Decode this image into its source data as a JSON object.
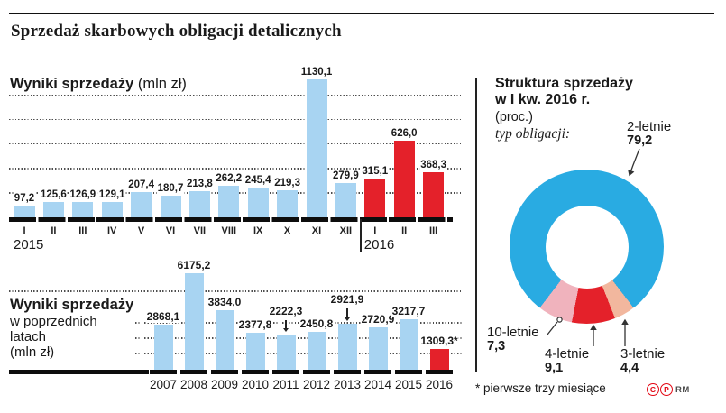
{
  "header": {
    "title": "Sprzedaż skarbowych obligacji detalicznych"
  },
  "colors": {
    "bar_blue": "#a8d4f2",
    "bar_red": "#e4212a",
    "grid": "#4d4d4d",
    "text": "#1a1a1a",
    "credit_red": "#e30613"
  },
  "chart_data": [
    {
      "id": "monthly-sales",
      "type": "bar",
      "title": "Wyniki sprzedaży",
      "unit": "(mln zł)",
      "ylim": [
        0,
        1200
      ],
      "gridlines": [
        200,
        400,
        600,
        800,
        1000
      ],
      "legend_position": "none",
      "points": [
        {
          "cat": "I",
          "year": "2015",
          "value": 97.2,
          "label": "97,2",
          "color": "bar_blue"
        },
        {
          "cat": "II",
          "year": "2015",
          "value": 125.6,
          "label": "125,6",
          "color": "bar_blue"
        },
        {
          "cat": "III",
          "year": "2015",
          "value": 126.9,
          "label": "126,9",
          "color": "bar_blue"
        },
        {
          "cat": "IV",
          "year": "2015",
          "value": 129.1,
          "label": "129,1",
          "color": "bar_blue"
        },
        {
          "cat": "V",
          "year": "2015",
          "value": 207.4,
          "label": "207,4",
          "color": "bar_blue"
        },
        {
          "cat": "VI",
          "year": "2015",
          "value": 180.7,
          "label": "180,7",
          "color": "bar_blue"
        },
        {
          "cat": "VII",
          "year": "2015",
          "value": 213.8,
          "label": "213,8",
          "color": "bar_blue"
        },
        {
          "cat": "VIII",
          "year": "2015",
          "value": 262.2,
          "label": "262,2",
          "color": "bar_blue"
        },
        {
          "cat": "IX",
          "year": "2015",
          "value": 245.4,
          "label": "245,4",
          "color": "bar_blue"
        },
        {
          "cat": "X",
          "year": "2015",
          "value": 219.3,
          "label": "219,3",
          "color": "bar_blue"
        },
        {
          "cat": "XI",
          "year": "2015",
          "value": 1130.1,
          "label": "1130,1",
          "color": "bar_blue"
        },
        {
          "cat": "XII",
          "year": "2015",
          "value": 279.9,
          "label": "279,9",
          "color": "bar_blue"
        },
        {
          "cat": "I",
          "year": "2016",
          "value": 315.1,
          "label": "315,1",
          "color": "bar_red"
        },
        {
          "cat": "II",
          "year": "2016",
          "value": 626.0,
          "label": "626,0",
          "color": "bar_red"
        },
        {
          "cat": "III",
          "year": "2016",
          "value": 368.3,
          "label": "368,3",
          "color": "bar_red"
        }
      ]
    },
    {
      "id": "yearly-sales",
      "type": "bar",
      "title": "Wyniki sprzedaży",
      "subtitle_lines": [
        "w poprzednich",
        "latach",
        "(mln zł)"
      ],
      "ylim": [
        0,
        6500
      ],
      "gridlines": [
        1000,
        2000,
        3000,
        4000,
        5000
      ],
      "legend_position": "none",
      "points": [
        {
          "cat": "2007",
          "value": 2868.1,
          "label": "2868,1",
          "color": "bar_blue"
        },
        {
          "cat": "2008",
          "value": 6175.2,
          "label": "6175,2",
          "color": "bar_blue"
        },
        {
          "cat": "2009",
          "value": 3834.0,
          "label": "3834,0",
          "color": "bar_blue"
        },
        {
          "cat": "2010",
          "value": 2377.8,
          "label": "2377,8",
          "color": "bar_blue"
        },
        {
          "cat": "2011",
          "value": 2222.3,
          "label": "2222,3",
          "color": "bar_blue",
          "arrow": true
        },
        {
          "cat": "2012",
          "value": 2450.8,
          "label": "2450,8",
          "color": "bar_blue"
        },
        {
          "cat": "2013",
          "value": 2921.9,
          "label": "2921,9",
          "color": "bar_blue",
          "arrow": true
        },
        {
          "cat": "2014",
          "value": 2720.9,
          "label": "2720,9",
          "color": "bar_blue"
        },
        {
          "cat": "2015",
          "value": 3217.7,
          "label": "3217,7",
          "color": "bar_blue"
        },
        {
          "cat": "2016",
          "value": 1309.3,
          "label": "1309,3*",
          "color": "bar_red"
        }
      ]
    },
    {
      "id": "structure",
      "type": "pie",
      "title_line1": "Struktura sprzedaży",
      "title_line2": "w I kw. 2016 r.",
      "subtitle": "(proc.)",
      "note": "typ obligacji:",
      "slices": [
        {
          "label": "2-letnie",
          "value": 79.2,
          "display": "79,2",
          "color": "#29abe2"
        },
        {
          "label": "3-letnie",
          "value": 4.4,
          "display": "4,4",
          "color": "#f2b79e"
        },
        {
          "label": "4-letnie",
          "value": 9.1,
          "display": "9,1",
          "color": "#e4212a"
        },
        {
          "label": "10-letnie",
          "value": 7.3,
          "display": "7,3",
          "color": "#f0b3bd"
        }
      ]
    }
  ],
  "footnote": "* pierwsze trzy miesiące",
  "credits": {
    "copyright": "C",
    "phonogram": "P",
    "agency": "RM"
  }
}
